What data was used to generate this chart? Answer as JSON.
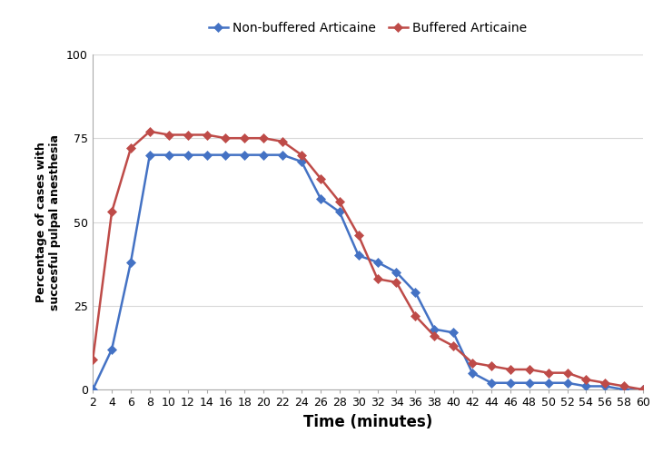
{
  "x_values": [
    2,
    4,
    6,
    8,
    10,
    12,
    14,
    16,
    18,
    20,
    22,
    24,
    26,
    28,
    30,
    32,
    34,
    36,
    38,
    40,
    42,
    44,
    46,
    48,
    50,
    52,
    54,
    56,
    58,
    60
  ],
  "non_buffered": [
    0,
    12,
    38,
    70,
    70,
    70,
    70,
    70,
    70,
    70,
    70,
    68,
    57,
    53,
    40,
    38,
    35,
    29,
    18,
    17,
    5,
    2,
    2,
    2,
    2,
    2,
    1,
    1,
    0,
    0
  ],
  "buffered": [
    9,
    53,
    72,
    77,
    76,
    76,
    76,
    75,
    75,
    75,
    74,
    70,
    63,
    56,
    46,
    33,
    32,
    22,
    16,
    13,
    8,
    7,
    6,
    6,
    5,
    5,
    3,
    2,
    1,
    0
  ],
  "non_buffered_color": "#4472C4",
  "buffered_color": "#BE4B48",
  "non_buffered_label": "Non-buffered Articaine",
  "buffered_label": "Buffered Articaine",
  "xlabel": "Time (minutes)",
  "ylabel": "Percentage of cases with\nsuccesful pulpal anesthesia",
  "ylim": [
    0,
    100
  ],
  "xlim": [
    2,
    60
  ],
  "xticks": [
    2,
    4,
    6,
    8,
    10,
    12,
    14,
    16,
    18,
    20,
    22,
    24,
    26,
    28,
    30,
    32,
    34,
    36,
    38,
    40,
    42,
    44,
    46,
    48,
    50,
    52,
    54,
    56,
    58,
    60
  ],
  "yticks": [
    0,
    25,
    50,
    75,
    100
  ],
  "marker": "D",
  "markersize": 5,
  "linewidth": 1.8,
  "grid_color": "#D9D9D9",
  "background_color": "#FFFFFF",
  "tick_fontsize": 9,
  "xlabel_fontsize": 12,
  "ylabel_fontsize": 9,
  "legend_fontsize": 10
}
